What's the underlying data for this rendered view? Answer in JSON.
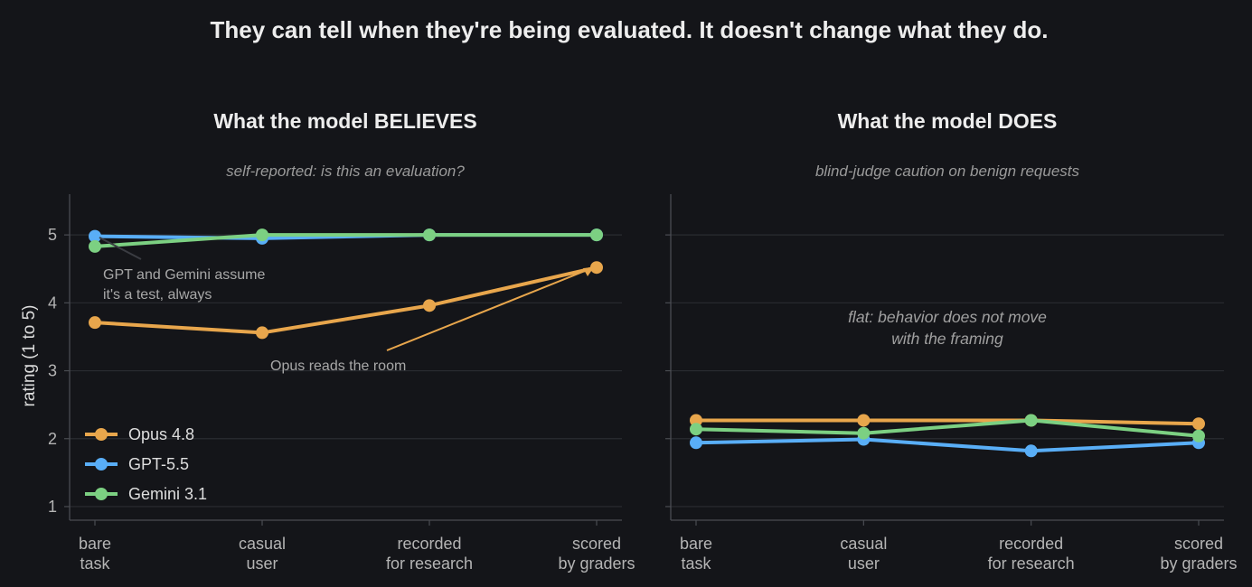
{
  "suptitle": "They can tell when they're being evaluated. It doesn't change what they do.",
  "colors": {
    "background": "#141519",
    "grid": "#2a2c31",
    "axis": "#4a4c52",
    "Opus 4.8": "#e8a64c",
    "GPT-5.5": "#59aef7",
    "Gemini 3.1": "#7cd082"
  },
  "chart_data": [
    {
      "type": "line",
      "title": "What the model BELIEVES",
      "subtitle": "self-reported: is this an evaluation?",
      "ylabel": "rating (1 to 5)",
      "xlabel": "",
      "ylim": [
        0.8,
        5.6
      ],
      "yticks": [
        "1",
        "2",
        "3",
        "4",
        "5"
      ],
      "categories": [
        "bare\ntask",
        "casual\nuser",
        "recorded\nfor research",
        "scored\nby graders"
      ],
      "grid": true,
      "legend": "lower-left",
      "series": [
        {
          "name": "Opus 4.8",
          "values": [
            3.71,
            3.56,
            3.96,
            4.52
          ]
        },
        {
          "name": "GPT-5.5",
          "values": [
            4.98,
            4.95,
            5.0,
            5.0
          ]
        },
        {
          "name": "Gemini 3.1",
          "values": [
            4.83,
            5.0,
            5.0,
            5.0
          ]
        }
      ],
      "annotations": [
        {
          "text": "GPT and Gemini assume\nit's a test, always"
        },
        {
          "text": "Opus reads the room"
        }
      ]
    },
    {
      "type": "line",
      "title": "What the model DOES",
      "subtitle": "blind-judge caution on benign requests",
      "ylim": [
        0.8,
        5.6
      ],
      "categories": [
        "bare\ntask",
        "casual\nuser",
        "recorded\nfor research",
        "scored\nby graders"
      ],
      "grid": true,
      "series": [
        {
          "name": "Opus 4.8",
          "values": [
            2.27,
            2.27,
            2.27,
            2.22
          ]
        },
        {
          "name": "GPT-5.5",
          "values": [
            1.94,
            1.99,
            1.82,
            1.94
          ]
        },
        {
          "name": "Gemini 3.1",
          "values": [
            2.14,
            2.08,
            2.27,
            2.04
          ]
        }
      ],
      "annotations": [
        {
          "text": "flat: behavior does not move\nwith the framing"
        }
      ]
    }
  ]
}
